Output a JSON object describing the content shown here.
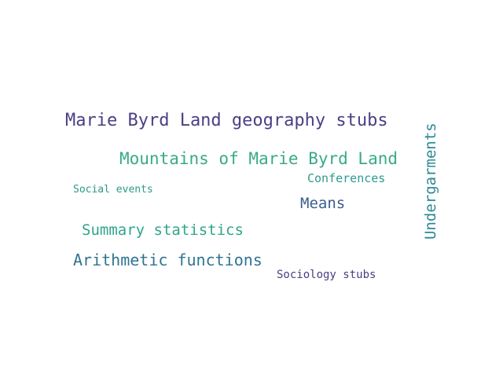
{
  "words": [
    {
      "text": "Marie Byrd Land geography stubs",
      "color": "#4a3f86"
    },
    {
      "text": "Mountains of Marie Byrd Land",
      "color": "#3aa98a"
    },
    {
      "text": "Conferences",
      "color": "#2f9a8e"
    },
    {
      "text": "Social events",
      "color": "#2e9a8a"
    },
    {
      "text": "Means",
      "color": "#3b5d8c"
    },
    {
      "text": "Summary statistics",
      "color": "#2fa58c"
    },
    {
      "text": "Arithmetic functions",
      "color": "#2f7490"
    },
    {
      "text": "Sociology stubs",
      "color": "#4c3c80"
    },
    {
      "text": "Undergarments",
      "color": "#2c8896"
    }
  ]
}
